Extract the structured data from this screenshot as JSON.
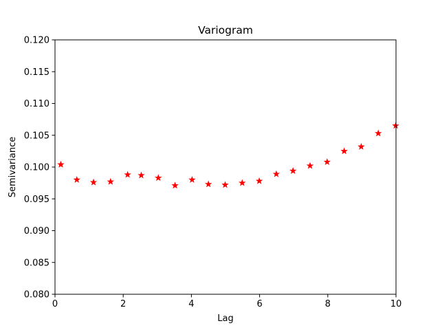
{
  "chart_data": {
    "type": "scatter",
    "title": "Variogram",
    "xlabel": "Lag",
    "ylabel": "Semivariance",
    "xlim": [
      0,
      10
    ],
    "ylim": [
      0.08,
      0.12
    ],
    "xticks": [
      0,
      2,
      4,
      6,
      8,
      10
    ],
    "xtick_labels": [
      "0",
      "2",
      "4",
      "6",
      "8",
      "10"
    ],
    "yticks": [
      0.08,
      0.085,
      0.09,
      0.095,
      0.1,
      0.105,
      0.11,
      0.115,
      0.12
    ],
    "ytick_labels": [
      "0.080",
      "0.085",
      "0.090",
      "0.095",
      "0.100",
      "0.105",
      "0.110",
      "0.115",
      "0.120"
    ],
    "grid": false,
    "marker": "star",
    "color": "#ff0000",
    "x": [
      0.17,
      0.64,
      1.13,
      1.63,
      2.13,
      2.53,
      3.03,
      3.52,
      4.02,
      4.5,
      4.99,
      5.49,
      5.99,
      6.49,
      6.98,
      7.48,
      7.98,
      8.48,
      8.98,
      9.48,
      9.99
    ],
    "y": [
      0.1004,
      0.098,
      0.0976,
      0.0977,
      0.0988,
      0.0987,
      0.0983,
      0.0971,
      0.098,
      0.0973,
      0.0972,
      0.0975,
      0.0978,
      0.0989,
      0.0994,
      0.1002,
      0.1008,
      0.1025,
      0.1032,
      0.1053,
      0.1065
    ]
  }
}
